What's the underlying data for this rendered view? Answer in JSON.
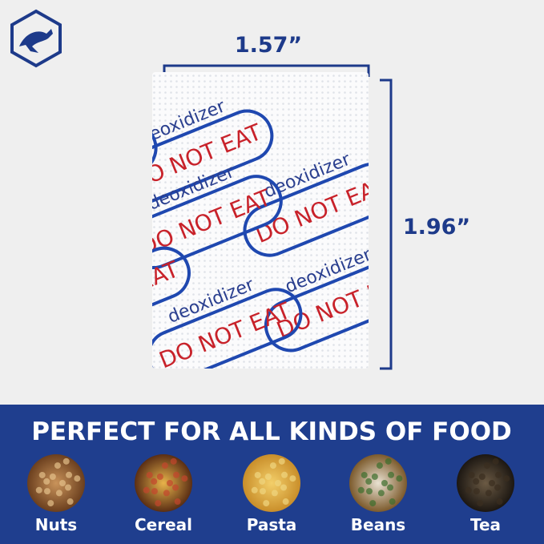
{
  "dimensions": {
    "width": "1.57”",
    "height": "1.96”"
  },
  "packet": {
    "brand_text": "deoxidizer",
    "warning": "DO NOT EAT"
  },
  "banner": {
    "title": "PERFECT FOR ALL KINDS OF FOOD",
    "foods": [
      {
        "label": "Nuts"
      },
      {
        "label": "Cereal"
      },
      {
        "label": "Pasta"
      },
      {
        "label": "Beans"
      },
      {
        "label": "Tea"
      }
    ]
  }
}
